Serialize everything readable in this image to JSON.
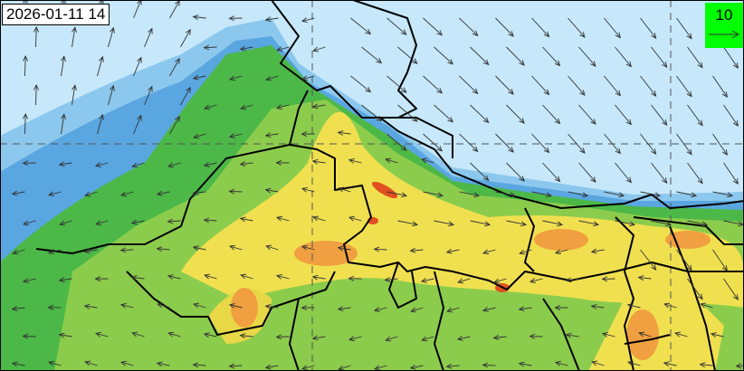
{
  "map": {
    "timestamp": "2026-01-11 14",
    "legend": {
      "reference_vector_label": "10",
      "background_color": "#00ff00"
    },
    "colors": {
      "low": "#c6e8fa",
      "mid_blue": "#8cc8ee",
      "blue": "#5aa6e0",
      "green": "#4cb848",
      "light_green": "#8ccc4c",
      "yellow": "#f0e050",
      "orange": "#f0a040",
      "red": "#e05020"
    },
    "icons": {
      "wind_vector": "arrow"
    }
  }
}
